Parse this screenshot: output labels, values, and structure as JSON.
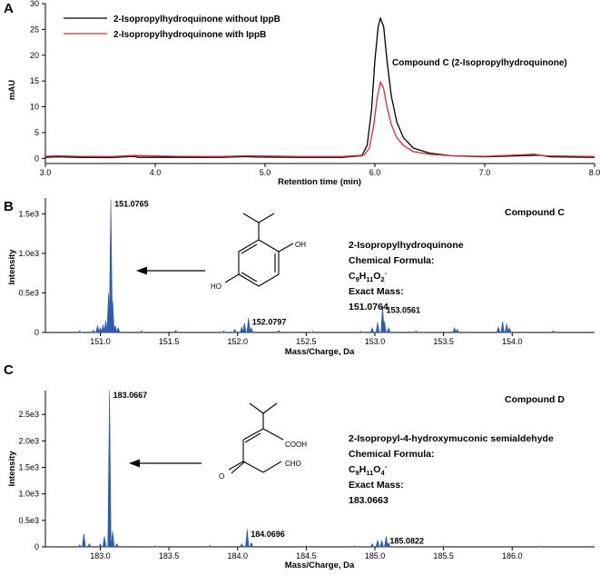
{
  "colors": {
    "black": "#000000",
    "red": "#e8262b",
    "blue": "#2a5cb0"
  },
  "chart_data": [
    {
      "type": "line",
      "panel_label": "A",
      "xlabel": "Retention time (min)",
      "ylabel": "mAU",
      "xlim": [
        3.0,
        8.0
      ],
      "ylim": [
        -1,
        30
      ],
      "xticks": [
        3.0,
        4.0,
        5.0,
        6.0,
        7.0,
        8.0
      ],
      "xtick_labels": [
        "3.0",
        "4.0",
        "5.0",
        "6.0",
        "7.0",
        "8.0"
      ],
      "yticks": [
        0,
        5,
        10,
        15,
        20,
        25,
        30
      ],
      "ytick_labels": [
        "0",
        "5",
        "10",
        "15",
        "20",
        "25",
        "30"
      ],
      "legend_position": "top-left",
      "annotation": "Compound C (2-Isopropylhydroquinone)",
      "series": [
        {
          "name": "2-Isopropylhydroquinone without IppB",
          "color": "#000000",
          "points": [
            [
              3.0,
              0.2
            ],
            [
              3.1,
              0.3
            ],
            [
              3.3,
              0.2
            ],
            [
              3.6,
              0.15
            ],
            [
              3.8,
              0.4
            ],
            [
              3.85,
              0.2
            ],
            [
              4.2,
              0.2
            ],
            [
              4.6,
              0.2
            ],
            [
              4.85,
              0.35
            ],
            [
              4.9,
              0.25
            ],
            [
              5.3,
              0.2
            ],
            [
              5.7,
              0.2
            ],
            [
              5.88,
              0.5
            ],
            [
              5.93,
              2.5
            ],
            [
              5.97,
              9.5
            ],
            [
              6.0,
              19
            ],
            [
              6.03,
              25.5
            ],
            [
              6.05,
              27.2
            ],
            [
              6.08,
              25.5
            ],
            [
              6.11,
              19
            ],
            [
              6.15,
              12
            ],
            [
              6.2,
              7
            ],
            [
              6.26,
              4
            ],
            [
              6.35,
              2
            ],
            [
              6.5,
              1
            ],
            [
              6.7,
              0.5
            ],
            [
              7.0,
              0.3
            ],
            [
              7.5,
              0.6
            ],
            [
              7.6,
              0.3
            ],
            [
              8.0,
              0.2
            ]
          ]
        },
        {
          "name": "2-Isopropylhydroquinone with IppB",
          "color": "#e8262b",
          "points": [
            [
              3.0,
              0.4
            ],
            [
              3.1,
              0.5
            ],
            [
              3.3,
              0.4
            ],
            [
              3.6,
              0.35
            ],
            [
              3.8,
              0.55
            ],
            [
              4.2,
              0.4
            ],
            [
              4.6,
              0.35
            ],
            [
              4.85,
              0.5
            ],
            [
              5.3,
              0.35
            ],
            [
              5.7,
              0.35
            ],
            [
              5.9,
              0.6
            ],
            [
              5.95,
              2
            ],
            [
              5.99,
              6.5
            ],
            [
              6.02,
              11.5
            ],
            [
              6.05,
              14.8
            ],
            [
              6.08,
              13.5
            ],
            [
              6.11,
              10
            ],
            [
              6.15,
              6.5
            ],
            [
              6.2,
              4
            ],
            [
              6.26,
              2.5
            ],
            [
              6.35,
              1.3
            ],
            [
              6.5,
              0.8
            ],
            [
              6.7,
              0.5
            ],
            [
              7.0,
              0.4
            ],
            [
              7.45,
              0.8
            ],
            [
              7.55,
              0.5
            ],
            [
              8.0,
              0.35
            ]
          ]
        }
      ]
    },
    {
      "type": "bar",
      "panel_label": "B",
      "title": "Compound C",
      "xlabel": "Mass/Charge, Da",
      "ylabel": "Intensity",
      "xlim": [
        150.6,
        154.6
      ],
      "ylim": [
        0,
        1700
      ],
      "xticks": [
        151.0,
        151.5,
        152.0,
        152.5,
        153.0,
        153.5,
        154.0
      ],
      "xtick_labels": [
        "151.0",
        "151.5",
        "152.0",
        "152.5",
        "153.0",
        "153.5",
        "154.0"
      ],
      "yticks": [
        0,
        500,
        1000,
        1500
      ],
      "ytick_labels": [
        "0",
        "0.5e3",
        "1.0e3",
        "1.5e3"
      ],
      "peak_labels": [
        {
          "x": 151.0765,
          "y": 1680,
          "label": "151.0765"
        },
        {
          "x": 152.0797,
          "y": 190,
          "label": "152.0797"
        },
        {
          "x": 153.0561,
          "y": 340,
          "label": "153.0561"
        }
      ],
      "peaks": [
        [
          150.85,
          20
        ],
        [
          150.95,
          30
        ],
        [
          150.98,
          90
        ],
        [
          151.0,
          60
        ],
        [
          151.02,
          100
        ],
        [
          151.04,
          150
        ],
        [
          151.06,
          500
        ],
        [
          151.0765,
          1680
        ],
        [
          151.09,
          400
        ],
        [
          151.11,
          90
        ],
        [
          151.13,
          60
        ],
        [
          151.3,
          20
        ],
        [
          151.55,
          25
        ],
        [
          151.9,
          20
        ],
        [
          151.98,
          40
        ],
        [
          152.03,
          70
        ],
        [
          152.05,
          120
        ],
        [
          152.0797,
          190
        ],
        [
          152.1,
          60
        ],
        [
          152.3,
          25
        ],
        [
          152.55,
          15
        ],
        [
          152.9,
          15
        ],
        [
          152.98,
          60
        ],
        [
          153.02,
          130
        ],
        [
          153.0561,
          340
        ],
        [
          153.07,
          140
        ],
        [
          153.1,
          60
        ],
        [
          153.3,
          20
        ],
        [
          153.58,
          60
        ],
        [
          153.6,
          40
        ],
        [
          153.9,
          70
        ],
        [
          153.93,
          140
        ],
        [
          153.96,
          110
        ],
        [
          153.98,
          60
        ],
        [
          154.3,
          20
        ]
      ],
      "compound_name": "2-Isopropylhydroquinone",
      "formula_label": "Chemical Formula:",
      "formula": "C9H11O2-",
      "mass_label": "Exact Mass:",
      "exact_mass": "151.0764",
      "structure_atoms": [
        "OH",
        "HO"
      ]
    },
    {
      "type": "bar",
      "panel_label": "C",
      "title": "Compound D",
      "xlabel": "Mass/Charge, Da",
      "ylabel": "Intensity",
      "xlim": [
        182.6,
        186.6
      ],
      "ylim": [
        0,
        2950
      ],
      "xticks": [
        183.0,
        183.5,
        184.0,
        184.5,
        185.0,
        185.5,
        186.0
      ],
      "xtick_labels": [
        "183.0",
        "183.5",
        "184.0",
        "184.5",
        "185.0",
        "185.5",
        "186.0"
      ],
      "yticks": [
        0,
        500,
        1000,
        1500,
        2000,
        2500
      ],
      "ytick_labels": [
        "0",
        "0.5e3",
        "1.0e3",
        "1.5e3",
        "2.0e3",
        "2.5e3"
      ],
      "peak_labels": [
        {
          "x": 183.0667,
          "y": 2950,
          "label": "183.0667"
        },
        {
          "x": 184.0696,
          "y": 330,
          "label": "184.0696"
        },
        {
          "x": 185.0822,
          "y": 200,
          "label": "185.0822"
        }
      ],
      "peaks": [
        [
          182.85,
          40
        ],
        [
          182.88,
          250
        ],
        [
          182.92,
          60
        ],
        [
          183.0,
          50
        ],
        [
          183.03,
          200
        ],
        [
          183.0667,
          2950
        ],
        [
          183.09,
          300
        ],
        [
          183.12,
          60
        ],
        [
          183.4,
          20
        ],
        [
          183.8,
          25
        ],
        [
          184.03,
          60
        ],
        [
          184.0696,
          330
        ],
        [
          184.1,
          80
        ],
        [
          184.5,
          20
        ],
        [
          184.85,
          20
        ],
        [
          184.98,
          60
        ],
        [
          185.02,
          130
        ],
        [
          185.05,
          120
        ],
        [
          185.0822,
          200
        ],
        [
          185.1,
          80
        ],
        [
          185.5,
          20
        ],
        [
          186.2,
          15
        ]
      ],
      "compound_name": "2-Isopropyl-4-hydroxymuconic semialdehyde",
      "formula_label": "Chemical Formula:",
      "formula": "C9H11O4-",
      "mass_label": "Exact Mass:",
      "exact_mass": "183.0663",
      "structure_atoms": [
        "COOH",
        "O",
        "CHO"
      ]
    }
  ]
}
